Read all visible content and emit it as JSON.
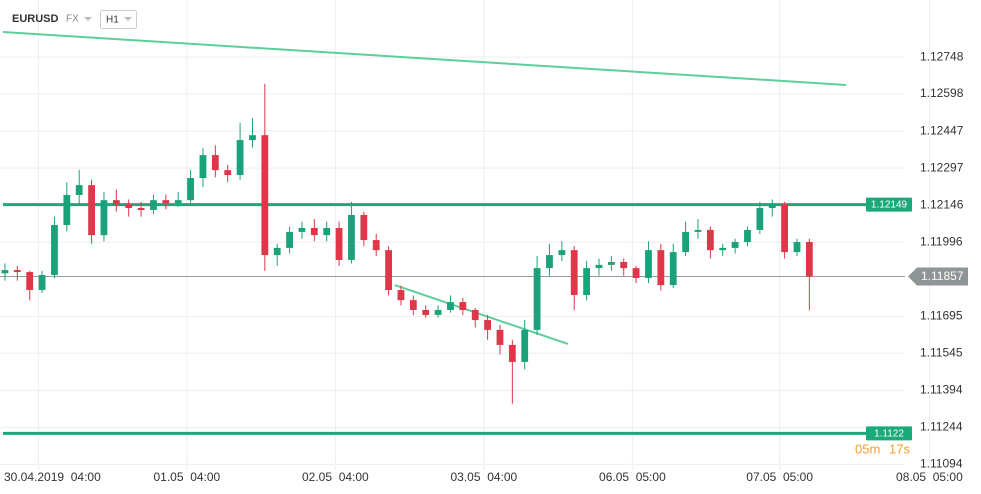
{
  "chart_data": {
    "type": "candlestick",
    "symbol": "EURUSD",
    "market": "FX",
    "timeframe": "H1",
    "up_color": "#1aa37a",
    "down_color": "#e0364a",
    "level_color": "#1aaa7a",
    "trend_color": "#5ccf9c",
    "xlim": [
      -0.4,
      78.87
    ],
    "ylim": [
      1.11071,
      1.1298
    ],
    "yticks": [
      1.12748,
      1.12598,
      1.12447,
      1.12297,
      1.12146,
      1.11996,
      1.11695,
      1.11545,
      1.11394,
      1.11244,
      1.11094
    ],
    "xticks": [
      {
        "value": 2.7,
        "label": "30.04.2019  04:00"
      },
      {
        "value": 14.7,
        "label": "01.05  04:00"
      },
      {
        "value": 26.7,
        "label": "02.05  04:00"
      },
      {
        "value": 38.7,
        "label": "03.05  04:00"
      },
      {
        "value": 50.7,
        "label": "06.05  05:00"
      },
      {
        "value": 62.6,
        "label": "07.05  05:00"
      },
      {
        "value": 74.7,
        "label": "08.05  05:00"
      }
    ],
    "grid": true,
    "ohlc": [
      [
        1.1187,
        1.1191,
        1.1184,
        1.11883
      ],
      [
        1.11883,
        1.119,
        1.1184,
        1.11875
      ],
      [
        1.11875,
        1.1188,
        1.1176,
        1.11802
      ],
      [
        1.11802,
        1.1188,
        1.1179,
        1.11863
      ],
      [
        1.11863,
        1.121,
        1.1185,
        1.12066
      ],
      [
        1.12066,
        1.1224,
        1.1204,
        1.12188
      ],
      [
        1.12188,
        1.1229,
        1.1215,
        1.12228
      ],
      [
        1.12228,
        1.1225,
        1.1199,
        1.12025
      ],
      [
        1.12025,
        1.122,
        1.12,
        1.12167
      ],
      [
        1.12167,
        1.1221,
        1.1212,
        1.1215
      ],
      [
        1.1215,
        1.1217,
        1.121,
        1.12135
      ],
      [
        1.12135,
        1.1216,
        1.121,
        1.12127
      ],
      [
        1.12127,
        1.1219,
        1.1211,
        1.12167
      ],
      [
        1.12167,
        1.1219,
        1.1213,
        1.12155
      ],
      [
        1.12155,
        1.122,
        1.1214,
        1.12167
      ],
      [
        1.12167,
        1.1229,
        1.1215,
        1.12257
      ],
      [
        1.12257,
        1.1238,
        1.1222,
        1.1235
      ],
      [
        1.1235,
        1.1239,
        1.1226,
        1.12289
      ],
      [
        1.12289,
        1.1231,
        1.1224,
        1.12269
      ],
      [
        1.12269,
        1.1248,
        1.1225,
        1.12411
      ],
      [
        1.12411,
        1.125,
        1.1238,
        1.12431
      ],
      [
        1.12431,
        1.1264,
        1.1188,
        1.11944
      ],
      [
        1.11944,
        1.1199,
        1.119,
        1.11973
      ],
      [
        1.11973,
        1.1206,
        1.1195,
        1.12038
      ],
      [
        1.12038,
        1.1208,
        1.1201,
        1.12054
      ],
      [
        1.12054,
        1.1209,
        1.12,
        1.12025
      ],
      [
        1.12025,
        1.1208,
        1.12,
        1.12054
      ],
      [
        1.12054,
        1.1208,
        1.119,
        1.11924
      ],
      [
        1.11924,
        1.1216,
        1.1191,
        1.12107
      ],
      [
        1.12107,
        1.1212,
        1.1198,
        1.12005
      ],
      [
        1.12005,
        1.1203,
        1.1194,
        1.11964
      ],
      [
        1.11964,
        1.1198,
        1.1178,
        1.11802
      ],
      [
        1.11802,
        1.1182,
        1.1174,
        1.11761
      ],
      [
        1.11761,
        1.1178,
        1.117,
        1.11721
      ],
      [
        1.11721,
        1.1174,
        1.1169,
        1.11701
      ],
      [
        1.11701,
        1.1174,
        1.1169,
        1.11721
      ],
      [
        1.11721,
        1.1178,
        1.1171,
        1.11753
      ],
      [
        1.11753,
        1.1177,
        1.117,
        1.11721
      ],
      [
        1.11721,
        1.1173,
        1.1165,
        1.1168
      ],
      [
        1.1168,
        1.117,
        1.116,
        1.1164
      ],
      [
        1.1164,
        1.1166,
        1.1154,
        1.11579
      ],
      [
        1.11579,
        1.116,
        1.1134,
        1.1151
      ],
      [
        1.1151,
        1.1168,
        1.1148,
        1.1164
      ],
      [
        1.1164,
        1.1194,
        1.1162,
        1.11891
      ],
      [
        1.11891,
        1.1199,
        1.1186,
        1.11944
      ],
      [
        1.11944,
        1.12,
        1.1192,
        1.11964
      ],
      [
        1.11964,
        1.1198,
        1.1172,
        1.11782
      ],
      [
        1.11782,
        1.1192,
        1.1176,
        1.11891
      ],
      [
        1.11891,
        1.1193,
        1.1186,
        1.11904
      ],
      [
        1.11904,
        1.1194,
        1.1188,
        1.11916
      ],
      [
        1.11916,
        1.1193,
        1.1186,
        1.11891
      ],
      [
        1.11891,
        1.119,
        1.1183,
        1.11851
      ],
      [
        1.11851,
        1.12,
        1.1183,
        1.11964
      ],
      [
        1.11964,
        1.1199,
        1.118,
        1.11822
      ],
      [
        1.11822,
        1.1199,
        1.1181,
        1.11956
      ],
      [
        1.11956,
        1.1208,
        1.1194,
        1.12038
      ],
      [
        1.12038,
        1.1209,
        1.1201,
        1.12046
      ],
      [
        1.12046,
        1.1206,
        1.1193,
        1.11964
      ],
      [
        1.11964,
        1.1199,
        1.1194,
        1.11973
      ],
      [
        1.11973,
        1.1201,
        1.1195,
        1.11997
      ],
      [
        1.11997,
        1.1206,
        1.1198,
        1.12046
      ],
      [
        1.12046,
        1.1216,
        1.1203,
        1.12135
      ],
      [
        1.12135,
        1.1217,
        1.121,
        1.1215
      ],
      [
        1.1215,
        1.1216,
        1.1193,
        1.11956
      ],
      [
        1.11956,
        1.1201,
        1.1194,
        1.11997
      ],
      [
        1.11997,
        1.1201,
        1.1172,
        1.11857
      ]
    ],
    "levels": [
      1.12149,
      1.1122
    ],
    "current_price": 1.11857,
    "trendlines": [
      {
        "x": [
          -0.16,
          67.96
        ],
        "y": [
          1.1285,
          1.12635
        ]
      },
      {
        "x": [
          31.5,
          45.5
        ],
        "y": [
          1.11822,
          1.11583
        ]
      }
    ],
    "countdown": {
      "minutes": "05m",
      "seconds": "17s"
    }
  }
}
